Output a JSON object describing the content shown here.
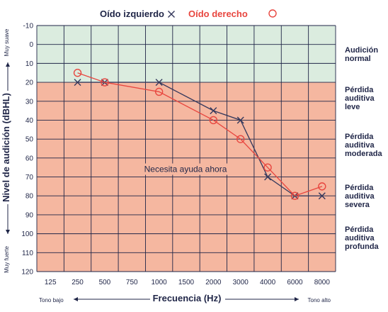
{
  "chart_data": {
    "type": "line",
    "x_categories": [
      "125",
      "250",
      "500",
      "750",
      "1000",
      "1500",
      "2000",
      "3000",
      "4000",
      "6000",
      "8000"
    ],
    "y_ticks": [
      "-10",
      "0",
      "10",
      "20",
      "30",
      "40",
      "50",
      "60",
      "70",
      "80",
      "90",
      "100",
      "110",
      "120"
    ],
    "ylim": [
      -10,
      120
    ],
    "y_inverted": true,
    "grid": true,
    "legend_position": "top-center",
    "xlabel": "Frecuencia (Hz)",
    "ylabel": "Nivel de audición (dBHL)",
    "x_low_label": "Tono bajo",
    "x_high_label": "Tono alto",
    "y_top_label": "Muy suave",
    "y_bottom_label": "Muy fuerte",
    "annotation": "Necesita ayuda ahora",
    "zones": [
      {
        "from": -10,
        "to": 20,
        "color": "#dbecdf"
      },
      {
        "from": 20,
        "to": 120,
        "color": "#f5b7a0"
      }
    ],
    "series": [
      {
        "name": "Oído izquierdo",
        "marker": "×",
        "color": "#34385c",
        "x": [
          "250",
          "500",
          "1000",
          "2000",
          "3000",
          "4000",
          "6000",
          "8000"
        ],
        "values": [
          20,
          20,
          20,
          35,
          40,
          70,
          80,
          80
        ]
      },
      {
        "name": "Oído derecho",
        "marker": "○",
        "color": "#e8463f",
        "x": [
          "250",
          "500",
          "1000",
          "2000",
          "3000",
          "4000",
          "6000",
          "8000"
        ],
        "values": [
          15,
          20,
          25,
          40,
          50,
          65,
          80,
          75
        ]
      }
    ],
    "categories_right": [
      {
        "lines": [
          "Audición",
          "normal"
        ]
      },
      {
        "lines": [
          "Pérdida",
          "auditiva",
          "leve"
        ]
      },
      {
        "lines": [
          "Pérdida",
          "auditiva",
          "moderada"
        ]
      },
      {
        "lines": [
          "Pérdida",
          "auditiva",
          "severa"
        ]
      },
      {
        "lines": [
          "Pérdida",
          "auditiva",
          "profunda"
        ]
      }
    ]
  }
}
